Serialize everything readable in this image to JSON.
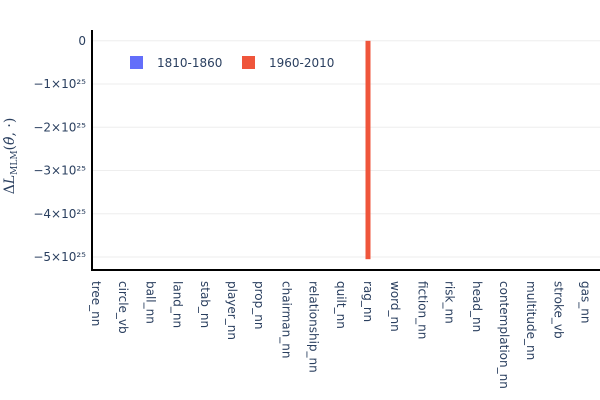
{
  "chart_data": {
    "type": "bar",
    "categories": [
      "tree_nn",
      "circle_vb",
      "ball_nn",
      "land_nn",
      "stab_nn",
      "player_nn",
      "prop_nn",
      "chairman_nn",
      "relationship_nn",
      "quilt_nn",
      "rag_nn",
      "word_nn",
      "fiction_nn",
      "risk_nn",
      "head_nn",
      "contemplation_nn",
      "multitude_nn",
      "stroke_vb",
      "gas_nn"
    ],
    "series": [
      {
        "name": "1810-1860",
        "color": "#636efa",
        "values": [
          0,
          0,
          0,
          0,
          0,
          0,
          0,
          0,
          0,
          0,
          0,
          0,
          0,
          0,
          0,
          0,
          0,
          0,
          0
        ]
      },
      {
        "name": "1960-2010",
        "color": "#ef553b",
        "values": [
          0,
          0,
          0,
          0,
          0,
          0,
          0,
          0,
          0,
          0,
          -5.05e+25,
          0,
          0,
          0,
          0,
          0,
          0,
          0,
          0
        ]
      }
    ],
    "ylabel": "ΔL_MLM(θ̂, ·)",
    "ylim": [
      -5.3e+25,
      2.5e+24
    ],
    "yticks": [
      {
        "value": 0,
        "label": "0"
      },
      {
        "value": -1e+25,
        "label": "−1×10²⁵"
      },
      {
        "value": -2e+25,
        "label": "−2×10²⁵"
      },
      {
        "value": -3e+25,
        "label": "−3×10²⁵"
      },
      {
        "value": -4e+25,
        "label": "−4×10²⁵"
      },
      {
        "value": -5e+25,
        "label": "−5×10²⁵"
      }
    ],
    "grid": true,
    "legend_position": "top-left"
  }
}
